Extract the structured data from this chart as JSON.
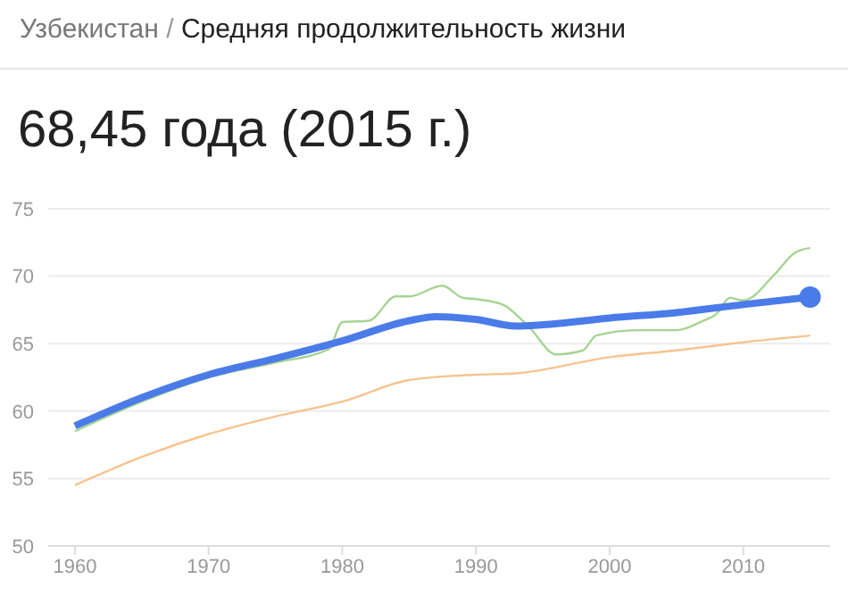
{
  "chart_data": {
    "type": "line",
    "title": "Узбекистан / Средняя продолжительность жизни",
    "subtitle": "68,45 года (2015 г.)",
    "series": [
      {
        "color": "#4a7be8",
        "x": [
          1960,
          1965,
          1970,
          1975,
          1980,
          1985,
          1987,
          1990,
          1993,
          1995,
          2000,
          2005,
          2010,
          2015
        ],
        "values": [
          58.9,
          61.0,
          62.7,
          63.9,
          65.2,
          66.7,
          67.0,
          66.8,
          66.3,
          66.4,
          66.9,
          67.3,
          67.9,
          68.45
        ]
      },
      {
        "color": "#a6d493",
        "x": [
          1960,
          1965,
          1970,
          1975,
          1979,
          1980,
          1982,
          1984,
          1985,
          1987.5,
          1989,
          1990,
          1992,
          1994,
          1996,
          1998,
          1999,
          2002,
          2005,
          2007,
          2008,
          2009,
          2010,
          2012.4,
          2013.8,
          2015
        ],
        "values": [
          58.5,
          60.7,
          62.5,
          63.6,
          64.6,
          66.6,
          66.7,
          68.5,
          68.5,
          69.3,
          68.4,
          68.3,
          67.9,
          66.2,
          64.2,
          64.5,
          65.6,
          66.0,
          66.0,
          66.7,
          67.2,
          68.4,
          68.2,
          70.2,
          71.7,
          72.1
        ]
      },
      {
        "color": "#f7c38f",
        "x": [
          1960,
          1965,
          1970,
          1975,
          1980,
          1985,
          1990,
          1993,
          2000,
          2005,
          2010,
          2015
        ],
        "values": [
          54.5,
          56.6,
          58.3,
          59.6,
          60.7,
          62.3,
          62.7,
          62.8,
          64.0,
          64.5,
          65.1,
          65.6
        ]
      }
    ],
    "xlim": [
      1958,
      2016.5
    ],
    "xticks": [
      1960,
      1970,
      1980,
      1990,
      2000,
      2010
    ],
    "ylim": [
      50,
      75
    ],
    "yticks": [
      50,
      55,
      60,
      65,
      70,
      75
    ],
    "grid": "y",
    "marker": "none",
    "line_style": "solid"
  }
}
